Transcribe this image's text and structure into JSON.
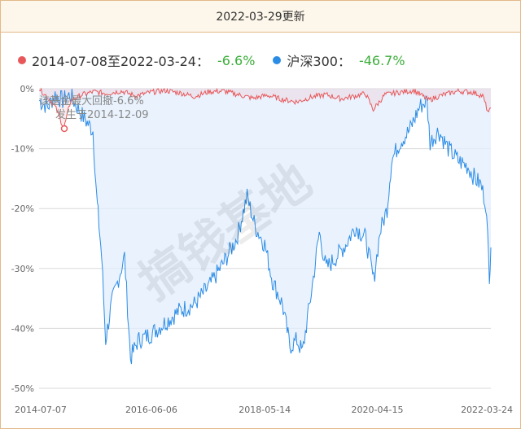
{
  "header": {
    "title": "2022-03-29更新"
  },
  "legend": [
    {
      "label": "2014-07-08至2022-03-24：",
      "value": "-6.6%",
      "color": "#e8585a"
    },
    {
      "label": "沪深300：",
      "value": "-46.7%",
      "color": "#2b8ce6"
    }
  ],
  "watermark": "搞钱基地",
  "annotation": {
    "line1": "该基金最大回撤-6.6%",
    "line2": "发生于2014-12-09"
  },
  "chart_data": {
    "type": "area",
    "x_range": [
      "2014-07-07",
      "2022-03-24"
    ],
    "ylim": [
      -50,
      0
    ],
    "yticks": [
      "0%",
      "-10%",
      "-20%",
      "-30%",
      "-40%",
      "-50%"
    ],
    "xticks": [
      "2014-07-07",
      "2016-06-06",
      "2018-05-14",
      "2020-04-15",
      "2022-03-24"
    ],
    "series": [
      {
        "name": "2014-07-08至2022-03-24",
        "color": "#e8585a",
        "x": [
          "2014-07-08",
          "2014-09-01",
          "2014-10-15",
          "2014-12-09",
          "2015-01-20",
          "2015-04-01",
          "2015-06-15",
          "2015-09-01",
          "2015-12-01",
          "2016-03-01",
          "2016-06-01",
          "2016-09-01",
          "2016-12-01",
          "2017-03-01",
          "2017-06-01",
          "2017-09-01",
          "2017-12-01",
          "2018-03-01",
          "2018-06-01",
          "2018-09-01",
          "2018-12-01",
          "2019-03-01",
          "2019-06-01",
          "2019-09-01",
          "2019-12-01",
          "2020-02-01",
          "2020-03-20",
          "2020-06-01",
          "2020-09-01",
          "2020-12-01",
          "2021-03-01",
          "2021-06-01",
          "2021-09-01",
          "2021-12-01",
          "2022-02-01",
          "2022-03-10",
          "2022-03-24"
        ],
        "values": [
          0,
          -1.5,
          -3,
          -6.6,
          -2,
          -1,
          -0.5,
          -0.8,
          -0.4,
          -1.2,
          -0.6,
          -0.3,
          -0.7,
          -1.3,
          -0.5,
          -0.4,
          -1,
          -1.6,
          -1.1,
          -1.8,
          -2.2,
          -1.4,
          -1,
          -1.7,
          -1.2,
          -0.8,
          -3.5,
          -1,
          -0.6,
          -0.3,
          -1.9,
          -1,
          -0.4,
          -0.6,
          -1.2,
          -4.2,
          -3.2
        ]
      },
      {
        "name": "沪深300",
        "color": "#2b8ce6",
        "x": [
          "2014-07-08",
          "2014-09-01",
          "2014-10-15",
          "2014-12-01",
          "2015-01-15",
          "2015-03-01",
          "2015-04-15",
          "2015-06-08",
          "2015-07-01",
          "2015-07-10",
          "2015-08-01",
          "2015-08-26",
          "2015-10-01",
          "2015-12-22",
          "2016-01-28",
          "2016-03-15",
          "2016-06-01",
          "2016-09-01",
          "2016-12-01",
          "2017-03-01",
          "2017-06-01",
          "2017-09-01",
          "2017-11-20",
          "2018-01-24",
          "2018-03-15",
          "2018-05-14",
          "2018-07-01",
          "2018-09-01",
          "2018-10-18",
          "2018-12-01",
          "2019-01-04",
          "2019-03-01",
          "2019-04-19",
          "2019-06-01",
          "2019-08-06",
          "2019-10-01",
          "2019-12-01",
          "2020-02-03",
          "2020-03-23",
          "2020-05-01",
          "2020-06-15",
          "2020-07-13",
          "2020-09-01",
          "2020-11-01",
          "2021-01-04",
          "2021-02-18",
          "2021-03-10",
          "2021-05-01",
          "2021-07-01",
          "2021-09-01",
          "2021-11-01",
          "2021-12-15",
          "2022-01-20",
          "2022-02-20",
          "2022-03-15",
          "2022-03-24"
        ],
        "values": [
          -2,
          -3,
          -1,
          -2,
          -1,
          -3,
          -5,
          -7,
          -18,
          -21,
          -28,
          -42,
          -36,
          -28,
          -45,
          -42,
          -41,
          -39,
          -37,
          -36,
          -33,
          -29,
          -25,
          -18,
          -23,
          -26,
          -32,
          -36,
          -43,
          -42,
          -44,
          -34,
          -24,
          -30,
          -28,
          -26,
          -23,
          -25,
          -32,
          -24,
          -20,
          -12,
          -9,
          -7,
          -3,
          -2,
          -9,
          -7,
          -10,
          -12,
          -13,
          -15,
          -16,
          -19,
          -31,
          -26.5
        ]
      }
    ]
  }
}
